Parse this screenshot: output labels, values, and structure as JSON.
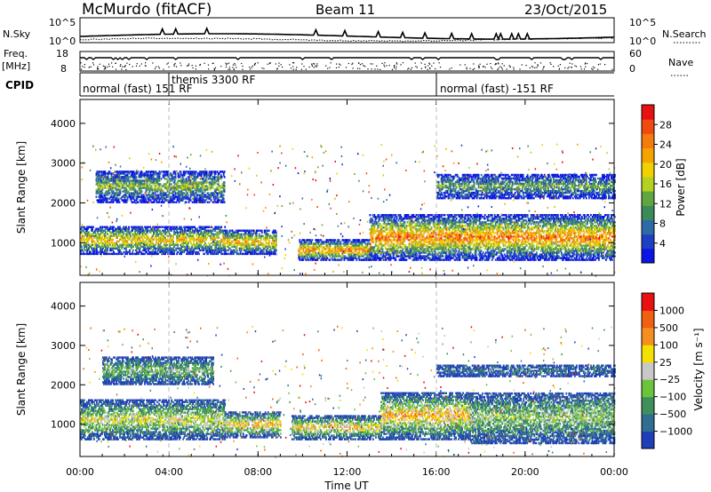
{
  "chart_data": [
    {
      "type": "heatmap",
      "title": "McMurdo (fitACF)",
      "beam": "Beam 11",
      "date": "23/Oct/2015",
      "xlabel": "Time UT",
      "x_ticks": [
        "00:00",
        "04:00",
        "08:00",
        "12:00",
        "16:00",
        "20:00",
        "00:00"
      ],
      "ylabel": "Slant Range [km]",
      "y_ticks": [
        1000,
        2000,
        3000,
        4000
      ],
      "ylim": [
        180,
        4600
      ],
      "colorbar": {
        "label": "Power [dB]",
        "ticks": [
          4,
          8,
          12,
          16,
          20,
          24,
          28
        ],
        "range": [
          0,
          32
        ],
        "colors": [
          "#0a14e6",
          "#1d3fc4",
          "#2f6aa8",
          "#3c8a5a",
          "#5fa640",
          "#b4d020",
          "#f0d200",
          "#f5a300",
          "#f57a10",
          "#f04a10",
          "#e81010"
        ]
      },
      "scatter_regions": [
        {
          "t0": 0.0,
          "t1": 6.5,
          "r0": 700,
          "r1": 1400,
          "level": 0.65
        },
        {
          "t0": 0.7,
          "t1": 6.5,
          "r0": 2000,
          "r1": 2800,
          "level": 0.45
        },
        {
          "t0": 6.5,
          "t1": 8.8,
          "r0": 700,
          "r1": 1300,
          "level": 0.7
        },
        {
          "t0": 9.8,
          "t1": 13.0,
          "r0": 550,
          "r1": 1050,
          "level": 0.8
        },
        {
          "t0": 13.0,
          "t1": 24.0,
          "r0": 550,
          "r1": 1700,
          "level": 0.8
        },
        {
          "t0": 16.0,
          "t1": 24.0,
          "r0": 2100,
          "r1": 2700,
          "level": 0.4
        }
      ]
    },
    {
      "type": "heatmap",
      "xlabel": "Time UT",
      "x_ticks": [
        "00:00",
        "04:00",
        "08:00",
        "12:00",
        "16:00",
        "20:00",
        "00:00"
      ],
      "ylabel": "Slant Range [km]",
      "y_ticks": [
        1000,
        2000,
        3000,
        4000
      ],
      "ylim": [
        180,
        4600
      ],
      "colorbar": {
        "label": "Velocity [m s⁻¹]",
        "ticks": [
          "1000",
          "500",
          "100",
          "25",
          "−25",
          "−100",
          "−500",
          "−1000"
        ],
        "colors": [
          "#1f3fb8",
          "#2f6e90",
          "#3e8f5c",
          "#6cc43a",
          "#c8c8c8",
          "#f5e000",
          "#f59020",
          "#f06010",
          "#e81010"
        ]
      },
      "scatter_regions": [
        {
          "t0": 0.0,
          "t1": 6.5,
          "r0": 600,
          "r1": 1600,
          "level": 0.55
        },
        {
          "t0": 1.0,
          "t1": 6.0,
          "r0": 2000,
          "r1": 2700,
          "level": 0.4
        },
        {
          "t0": 6.5,
          "t1": 9.0,
          "r0": 650,
          "r1": 1300,
          "level": 0.65
        },
        {
          "t0": 9.5,
          "t1": 13.5,
          "r0": 600,
          "r1": 1200,
          "level": 0.65
        },
        {
          "t0": 13.5,
          "t1": 17.5,
          "r0": 600,
          "r1": 1800,
          "level": 0.7
        },
        {
          "t0": 17.5,
          "t1": 24.0,
          "r0": 500,
          "r1": 1800,
          "level": 0.45
        },
        {
          "t0": 16.0,
          "t1": 24.0,
          "r0": 2200,
          "r1": 2500,
          "level": 0.15
        }
      ]
    }
  ],
  "header": {
    "nsky_label": "N.Sky",
    "nsearch_label": "N.Search",
    "freq_label": "Freq.",
    "freq_unit": "[MHz]",
    "cpid_label": "CPID",
    "nave_label": "Nave",
    "noise_left_top": "10^5",
    "noise_left_bottom": "10^0",
    "noise_right_top": "10^5",
    "noise_right_bottom": "10^0",
    "freq_left_top": "18",
    "freq_left_bottom": "8",
    "nave_right_top": "60",
    "nave_right_bottom": "0",
    "cpid_segments": [
      {
        "label": "normal (fast) 151 RF",
        "t": 0.0
      },
      {
        "label": "themis 3300 RF",
        "t": 4.0
      },
      {
        "label": "normal (fast) -151 RF",
        "t": 16.0
      }
    ]
  }
}
